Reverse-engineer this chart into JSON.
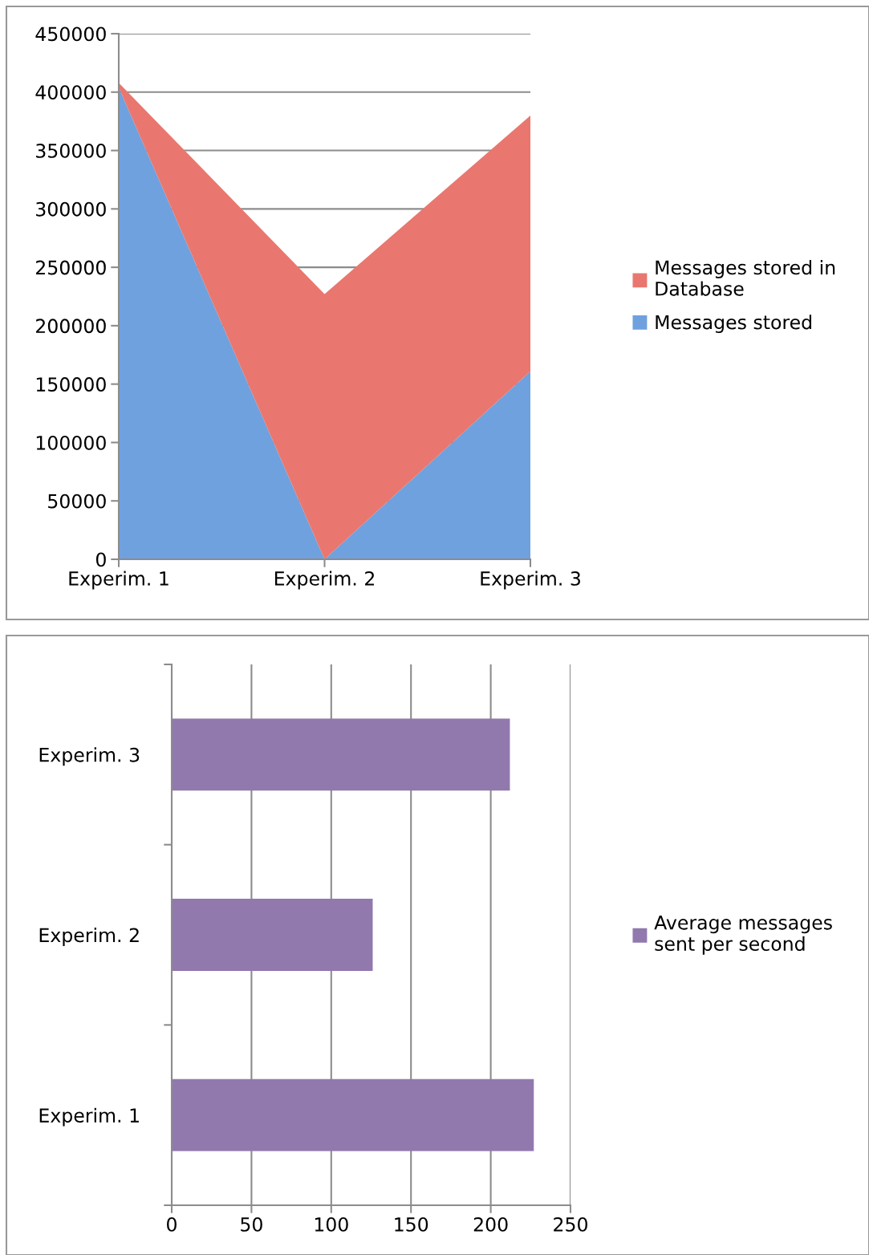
{
  "chart_data": [
    {
      "type": "area",
      "stacked": true,
      "categories": [
        "Experim. 1",
        "Experim. 2",
        "Experim. 3"
      ],
      "series": [
        {
          "name": "Messages stored",
          "color": "#6fa1de",
          "values": [
            404000,
            0,
            161000
          ]
        },
        {
          "name": "Messages stored in Database",
          "color": "#e9776f",
          "values": [
            4000,
            227000,
            219000
          ]
        }
      ],
      "ylim": [
        0,
        450000
      ],
      "yticks": [
        0,
        50000,
        100000,
        150000,
        200000,
        250000,
        300000,
        350000,
        400000,
        450000
      ],
      "grid": "y",
      "legend": "right"
    },
    {
      "type": "bar",
      "orientation": "horizontal",
      "categories": [
        "Experim. 3",
        "Experim. 2",
        "Experim. 1"
      ],
      "series": [
        {
          "name": "Average messages sent per second",
          "color": "#9179ae",
          "values": [
            212,
            126,
            227
          ]
        }
      ],
      "xlim": [
        0,
        250
      ],
      "xticks": [
        0,
        50,
        100,
        150,
        200,
        250
      ],
      "grid": "x",
      "legend": "right"
    }
  ]
}
